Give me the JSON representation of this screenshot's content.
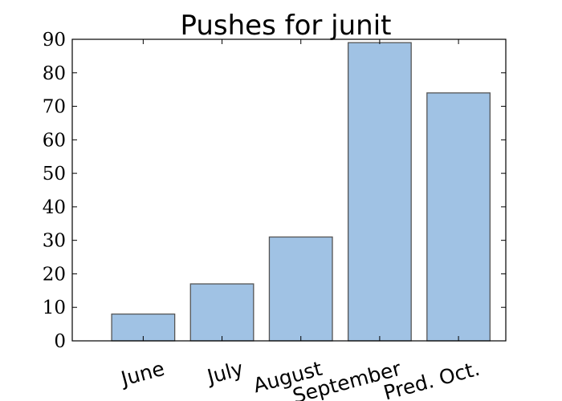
{
  "chart_data": {
    "type": "bar",
    "title": "Pushes for junit",
    "categories": [
      "June",
      "July",
      "August",
      "September",
      "Pred. Oct."
    ],
    "values": [
      8,
      17,
      31,
      89,
      74
    ],
    "ylim": [
      0,
      90
    ],
    "yticks": [
      "0",
      "10",
      "20",
      "30",
      "40",
      "50",
      "60",
      "70",
      "80",
      "90"
    ],
    "xlabel": "",
    "ylabel": "",
    "grid": false,
    "bar_color": "#a0c2e4",
    "bar_edge_color": "#555555"
  }
}
